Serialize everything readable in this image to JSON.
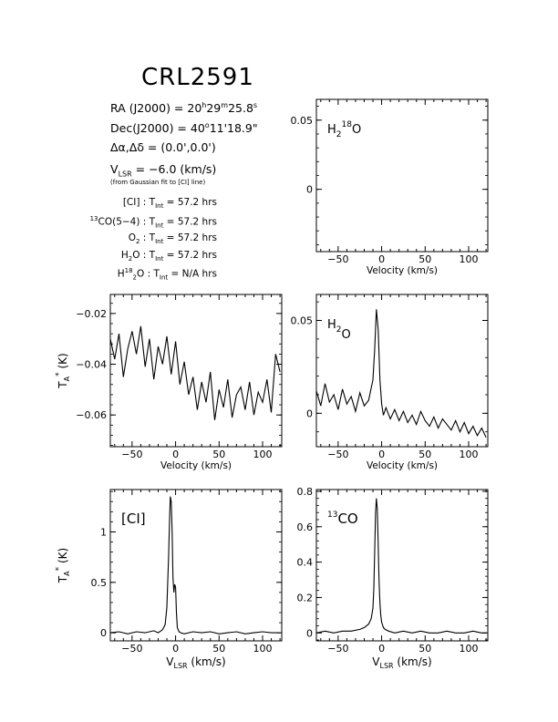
{
  "header": {
    "title": "CRL2591",
    "ra_label": "RA (J2000) = ",
    "ra_h": "20",
    "ra_h_unit": "h",
    "ra_m": "29",
    "ra_m_unit": "m",
    "ra_s": "25.8",
    "ra_s_unit": "s",
    "dec_label": "Dec(J2000) = ",
    "dec_deg": "40",
    "dec_deg_unit": "o",
    "dec_rest": "11'18.9\"",
    "offset_label": "Δα,Δδ = (0.0',0.0')",
    "vlsr_v": "V",
    "vlsr_sub": "LSR",
    "vlsr_value": " = −6.0 (km/s)",
    "vlsr_note": "(from Gaussian fit to [CI] line)"
  },
  "integration_times": [
    {
      "line_pre": "",
      "line_sup": "",
      "line_main": "[CI]",
      "line_sub": "",
      "line_post": "",
      "value": "57.2 hrs"
    },
    {
      "line_pre": "",
      "line_sup": "13",
      "line_main": "CO(5−4)",
      "line_sub": "",
      "line_post": "",
      "value": "57.2 hrs"
    },
    {
      "line_pre": "O",
      "line_sup": "",
      "line_main": "",
      "line_sub": "2",
      "line_post": "",
      "value": "57.2 hrs"
    },
    {
      "line_pre": "H",
      "line_sup": "",
      "line_main": "",
      "line_sub": "2",
      "line_post": "O",
      "value": "57.2 hrs"
    },
    {
      "line_pre": "H",
      "line_sup": "18",
      "line_main": "",
      "line_sub": "2",
      "line_post": "O",
      "value": "N/A hrs"
    }
  ],
  "tint_label": {
    "t": "T",
    "sub": "Int",
    "eq": " = ",
    "sep": " : "
  },
  "axis_text": {
    "velocity": "Velocity (km/s)",
    "vlsr_v": "V",
    "vlsr_sub": "LSR",
    "vlsr_rest": " (km/s)",
    "ta_t": "T",
    "ta_sub": "A",
    "ta_sup": "*",
    "ta_unit": " (K)"
  },
  "chart_data": [
    {
      "id": "h218o",
      "type": "line",
      "label_main": "H",
      "label_sub": "2",
      "label_sup": "18",
      "label_post": "O",
      "xlim": [
        -75,
        122
      ],
      "ylim": [
        -0.045,
        0.065
      ],
      "xticks": [
        -50,
        0,
        50,
        100
      ],
      "yticks": [
        0,
        0.05
      ],
      "ytick_labels": [
        "0",
        "0.05"
      ],
      "xlabel_style": "velocity",
      "ylabel": "",
      "series": [
        {
          "x": [],
          "y": []
        }
      ]
    },
    {
      "id": "oxygen",
      "type": "line",
      "xlim": [
        -75,
        122
      ],
      "ylim": [
        -0.0725,
        -0.0125
      ],
      "xticks": [
        -50,
        0,
        50,
        100
      ],
      "yticks": [
        -0.06,
        -0.04,
        -0.02
      ],
      "ytick_labels": [
        "−0.06",
        "−0.04",
        "−0.02"
      ],
      "xlabel_style": "velocity",
      "ylabel": "ta",
      "series": [
        {
          "x": [
            -75,
            -70,
            -65,
            -60,
            -55,
            -50,
            -45,
            -40,
            -35,
            -30,
            -25,
            -20,
            -15,
            -10,
            -5,
            0,
            5,
            10,
            15,
            20,
            25,
            30,
            35,
            40,
            45,
            50,
            55,
            60,
            65,
            70,
            75,
            80,
            85,
            90,
            95,
            100,
            105,
            110,
            115,
            120
          ],
          "y": [
            -0.03,
            -0.038,
            -0.028,
            -0.045,
            -0.034,
            -0.027,
            -0.036,
            -0.025,
            -0.041,
            -0.03,
            -0.046,
            -0.033,
            -0.04,
            -0.029,
            -0.044,
            -0.031,
            -0.048,
            -0.039,
            -0.052,
            -0.045,
            -0.058,
            -0.047,
            -0.055,
            -0.043,
            -0.062,
            -0.05,
            -0.057,
            -0.046,
            -0.061,
            -0.052,
            -0.049,
            -0.058,
            -0.047,
            -0.06,
            -0.051,
            -0.055,
            -0.046,
            -0.059,
            -0.036,
            -0.043
          ]
        }
      ]
    },
    {
      "id": "h2o",
      "type": "line",
      "label_main": "H",
      "label_sub": "2",
      "label_sup": "",
      "label_post": "O",
      "xlim": [
        -75,
        122
      ],
      "ylim": [
        -0.018,
        0.064
      ],
      "xticks": [
        -50,
        0,
        50,
        100
      ],
      "yticks": [
        0,
        0.05
      ],
      "ytick_labels": [
        "0",
        "0.05"
      ],
      "xlabel_style": "velocity",
      "ylabel": "",
      "series": [
        {
          "x": [
            -75,
            -70,
            -65,
            -60,
            -55,
            -50,
            -45,
            -40,
            -35,
            -30,
            -25,
            -20,
            -15,
            -10,
            -8,
            -6,
            -4,
            -2,
            0,
            2,
            5,
            10,
            15,
            20,
            25,
            30,
            35,
            40,
            45,
            50,
            55,
            60,
            65,
            70,
            75,
            80,
            85,
            90,
            95,
            100,
            105,
            110,
            115,
            120
          ],
          "y": [
            0.012,
            0.004,
            0.016,
            0.006,
            0.01,
            0.002,
            0.013,
            0.005,
            0.009,
            0.001,
            0.011,
            0.004,
            0.007,
            0.018,
            0.034,
            0.056,
            0.045,
            0.018,
            0.005,
            -0.001,
            0.003,
            -0.003,
            0.002,
            -0.004,
            0.001,
            -0.005,
            -0.001,
            -0.006,
            0.001,
            -0.004,
            -0.007,
            -0.002,
            -0.008,
            -0.003,
            -0.006,
            -0.009,
            -0.004,
            -0.01,
            -0.005,
            -0.011,
            -0.007,
            -0.012,
            -0.008,
            -0.013
          ]
        }
      ]
    },
    {
      "id": "ci",
      "type": "line",
      "label_main": "[CI]",
      "xlim": [
        -75,
        122
      ],
      "ylim": [
        -0.08,
        1.42
      ],
      "xticks": [
        -50,
        0,
        50,
        100
      ],
      "yticks": [
        0,
        0.5,
        1
      ],
      "ytick_labels": [
        "0",
        "0.5",
        "1"
      ],
      "xlabel_style": "vlsr",
      "ylabel": "ta",
      "series": [
        {
          "x": [
            -75,
            -65,
            -55,
            -45,
            -35,
            -25,
            -20,
            -15,
            -12,
            -10,
            -8,
            -7,
            -6,
            -5,
            -4,
            -3,
            -2,
            -1,
            0,
            1,
            2,
            4,
            6,
            10,
            20,
            30,
            40,
            50,
            60,
            70,
            80,
            90,
            100,
            110,
            120
          ],
          "y": [
            0.0,
            0.01,
            -0.01,
            0.01,
            0.0,
            0.02,
            0.0,
            0.03,
            0.08,
            0.25,
            0.75,
            1.1,
            1.35,
            1.3,
            1.0,
            0.55,
            0.4,
            0.48,
            0.45,
            0.2,
            0.05,
            0.01,
            0.0,
            -0.01,
            0.01,
            0.0,
            0.01,
            -0.01,
            0.0,
            0.01,
            -0.01,
            0.0,
            0.01,
            0.0,
            0.0
          ]
        }
      ]
    },
    {
      "id": "13co",
      "type": "line",
      "label_main": "CO",
      "label_sup": "13",
      "xlim": [
        -75,
        122
      ],
      "ylim": [
        -0.045,
        0.81
      ],
      "xticks": [
        -50,
        0,
        50,
        100
      ],
      "yticks": [
        0,
        0.2,
        0.4,
        0.6,
        0.8
      ],
      "ytick_labels": [
        "0",
        "0.2",
        "0.4",
        "0.6",
        "0.8"
      ],
      "xlabel_style": "vlsr",
      "ylabel": "",
      "series": [
        {
          "x": [
            -75,
            -65,
            -55,
            -45,
            -35,
            -25,
            -20,
            -15,
            -12,
            -10,
            -9,
            -8,
            -7,
            -6,
            -5,
            -4,
            -3,
            -2,
            -1,
            0,
            2,
            4,
            8,
            15,
            25,
            35,
            45,
            55,
            65,
            75,
            85,
            95,
            105,
            115,
            120
          ],
          "y": [
            0.0,
            0.01,
            0.0,
            0.01,
            0.01,
            0.02,
            0.03,
            0.05,
            0.08,
            0.14,
            0.25,
            0.45,
            0.68,
            0.76,
            0.7,
            0.5,
            0.3,
            0.17,
            0.1,
            0.06,
            0.03,
            0.02,
            0.01,
            0.0,
            0.01,
            0.0,
            0.01,
            0.0,
            0.0,
            0.01,
            0.0,
            0.0,
            0.01,
            0.0,
            0.0
          ]
        }
      ]
    }
  ]
}
